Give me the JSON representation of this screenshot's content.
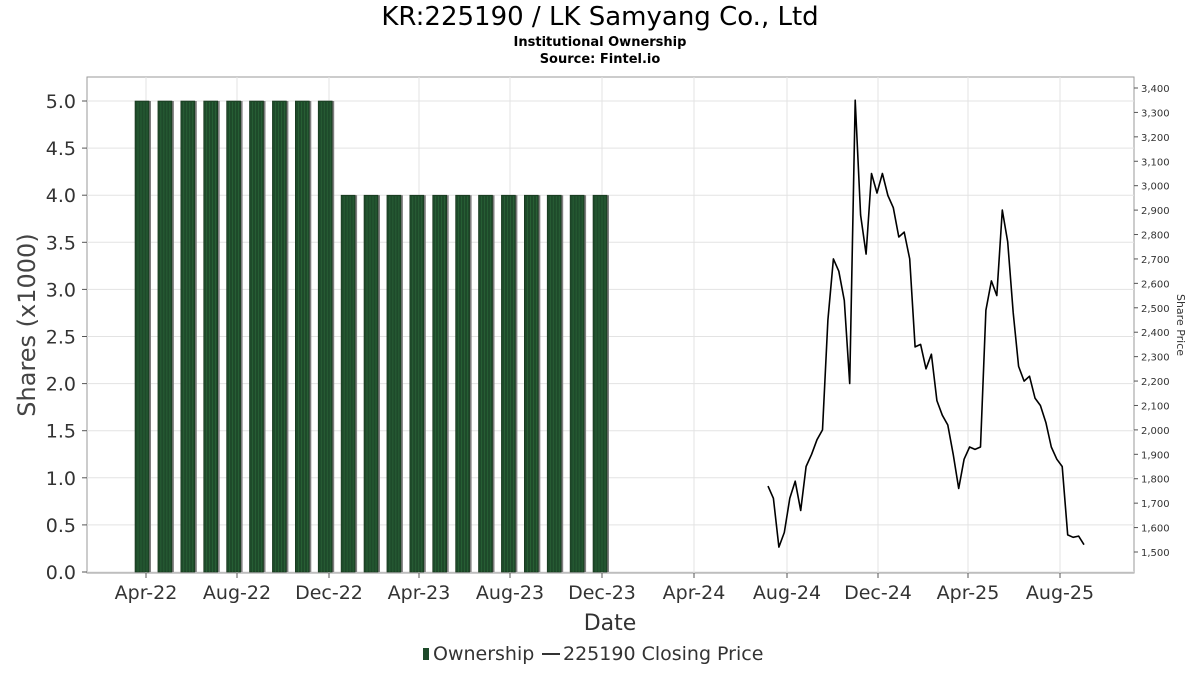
{
  "title": "KR:225190 / LK Samyang Co., Ltd",
  "subtitle": "Institutional Ownership",
  "source": "Source: Fintel.io",
  "chart_data": {
    "type": "bar",
    "xlabel": "Date",
    "ylabel": "Shares (x1000)",
    "y2label": "Share Price",
    "ylim": [
      0,
      5.0
    ],
    "y2lim": [
      1450,
      3400
    ],
    "yticks": [
      "0.0",
      "0.5",
      "1.0",
      "1.5",
      "2.0",
      "2.5",
      "3.0",
      "3.5",
      "4.0",
      "4.5",
      "5.0"
    ],
    "y2ticks": [
      "1,500",
      "1,600",
      "1,700",
      "1,800",
      "1,900",
      "2,000",
      "2,100",
      "2,200",
      "2,300",
      "2,400",
      "2,500",
      "2,600",
      "2,700",
      "2,800",
      "2,900",
      "3,000",
      "3,100",
      "3,200",
      "3,300",
      "3,400"
    ],
    "xticks": [
      "Apr-22",
      "Aug-22",
      "Dec-22",
      "Apr-23",
      "Aug-23",
      "Dec-23",
      "Apr-24",
      "Aug-24",
      "Dec-24",
      "Apr-25",
      "Aug-25"
    ],
    "grid": true,
    "colors": {
      "bar": "#1e4a2a",
      "bar_shadow": "#7f7f7f",
      "line": "#000000"
    },
    "series": [
      {
        "name": "Ownership",
        "kind": "bar",
        "axis": "left",
        "values": [
          5.0,
          5.0,
          5.0,
          5.0,
          5.0,
          5.0,
          5.0,
          5.0,
          5.0,
          4.0,
          4.0,
          4.0,
          4.0,
          4.0,
          4.0,
          4.0,
          4.0,
          4.0,
          4.0,
          4.0,
          4.0
        ]
      },
      {
        "name": "225190 Closing Price",
        "kind": "line",
        "axis": "right",
        "values": [
          1770,
          1720,
          1520,
          1580,
          1720,
          1790,
          1670,
          1850,
          1900,
          1960,
          2000,
          2450,
          2700,
          2650,
          2530,
          2190,
          3350,
          2880,
          2720,
          3050,
          2970,
          3050,
          2960,
          2910,
          2790,
          2810,
          2700,
          2340,
          2350,
          2250,
          2310,
          2120,
          2060,
          2020,
          1900,
          1760,
          1880,
          1930,
          1920,
          1930,
          2490,
          2610,
          2550,
          2900,
          2770,
          2480,
          2260,
          2200,
          2220,
          2130,
          2100,
          2030,
          1930,
          1880,
          1850,
          1570,
          1560,
          1565,
          1530
        ]
      }
    ],
    "legend": {
      "position": "bottom",
      "entries": [
        "Ownership",
        "225190 Closing Price"
      ]
    }
  }
}
